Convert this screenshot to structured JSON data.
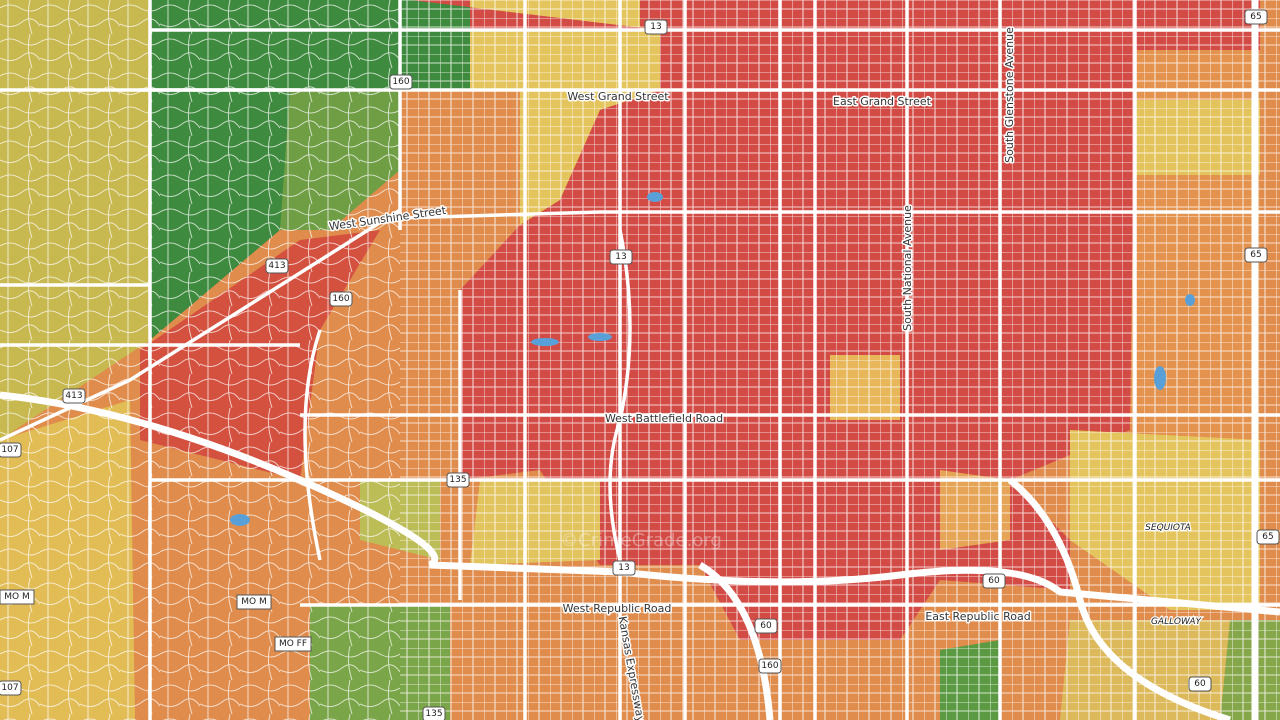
{
  "street_labels": [
    "West Grand Street",
    "East Grand Street",
    "South Glenstone Avenue",
    "West Sunshine Street",
    "South National Avenue",
    "West Battlefield Road",
    "West Republic Road",
    "East Republic Road",
    "Kansas Expressway"
  ],
  "place_labels": [
    "SEQUIOTA",
    "GALLOWAY"
  ],
  "route_labels": [
    "MO M",
    "MO M",
    "MO FF"
  ],
  "shields": [
    "13",
    "160",
    "413",
    "160",
    "13",
    "413",
    "107",
    "135",
    "13",
    "60",
    "60",
    "160",
    "65",
    "65",
    "65",
    "60",
    "135",
    "107"
  ],
  "watermark": "©CrimeGrade.org"
}
